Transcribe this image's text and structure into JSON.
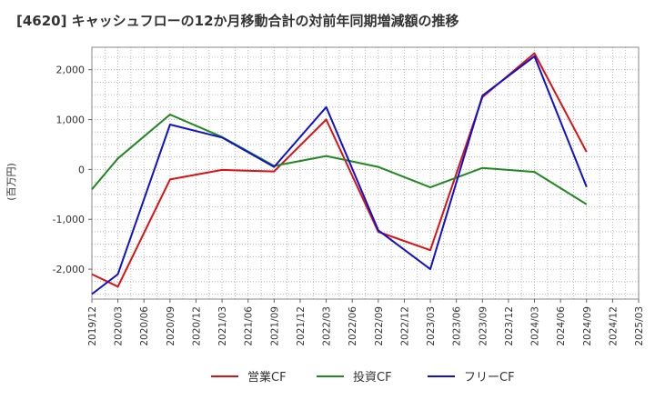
{
  "chart_data": {
    "type": "line",
    "title": "[4620]  キャッシュフローの12か月移動合計の対前年同期増減額の推移",
    "ylabel": "(百万円)",
    "xlabel": "",
    "ylim": [
      -2600,
      2450
    ],
    "yticks": [
      2000,
      1000,
      0,
      -1000,
      -2000
    ],
    "ytick_labels": [
      "2,000",
      "1,000",
      "0",
      "-1,000",
      "-2,000"
    ],
    "x_ticks": [
      "2019/12",
      "2020/03",
      "2020/06",
      "2020/09",
      "2020/12",
      "2021/03",
      "2021/06",
      "2021/09",
      "2021/12",
      "2022/03",
      "2022/06",
      "2022/09",
      "2022/12",
      "2023/03",
      "2023/06",
      "2023/09",
      "2023/12",
      "2024/03",
      "2024/06",
      "2024/09",
      "2024/12",
      "2025/03"
    ],
    "grid": true,
    "legend_position": "bottom",
    "series": [
      {
        "name": "営業CF",
        "color": "#dd1111",
        "points": [
          [
            "2019/12",
            -2100
          ],
          [
            "2020/03",
            -2350
          ],
          [
            "2020/09",
            -200
          ],
          [
            "2021/03",
            -10
          ],
          [
            "2021/09",
            -40
          ],
          [
            "2022/03",
            1000
          ],
          [
            "2022/09",
            -1250
          ],
          [
            "2023/03",
            -1620
          ],
          [
            "2023/09",
            1450
          ],
          [
            "2024/03",
            2330
          ],
          [
            "2024/09",
            350
          ]
        ]
      },
      {
        "name": "投資CF",
        "color": "#228822",
        "points": [
          [
            "2019/12",
            -400
          ],
          [
            "2020/03",
            220
          ],
          [
            "2020/09",
            1100
          ],
          [
            "2021/03",
            650
          ],
          [
            "2021/09",
            70
          ],
          [
            "2022/03",
            270
          ],
          [
            "2022/09",
            50
          ],
          [
            "2023/03",
            -360
          ],
          [
            "2023/09",
            30
          ],
          [
            "2024/03",
            -50
          ],
          [
            "2024/09",
            -700
          ]
        ]
      },
      {
        "name": "フリーCF",
        "color": "#1111cc",
        "points": [
          [
            "2019/12",
            -2500
          ],
          [
            "2020/03",
            -2100
          ],
          [
            "2020/09",
            900
          ],
          [
            "2021/03",
            640
          ],
          [
            "2021/09",
            50
          ],
          [
            "2022/03",
            1250
          ],
          [
            "2022/09",
            -1220
          ],
          [
            "2023/03",
            -2000
          ],
          [
            "2023/09",
            1480
          ],
          [
            "2024/03",
            2270
          ],
          [
            "2024/09",
            -350
          ]
        ]
      }
    ]
  }
}
